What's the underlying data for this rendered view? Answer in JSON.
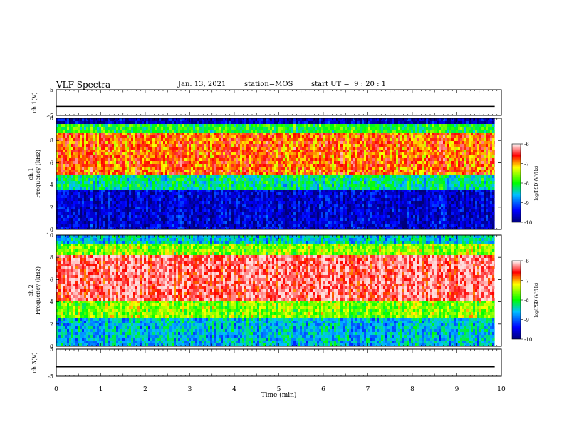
{
  "header": {
    "title": "VLF Spectra",
    "date": "Jan. 13, 2021",
    "station": "station=MOS",
    "start": "start UT =  9 : 20 : 1"
  },
  "chart_data": [
    {
      "type": "line",
      "ylabel": "ch.1(V)",
      "ylim": [
        -5,
        5
      ],
      "yticks": [
        "5",
        "-5"
      ],
      "series": [
        {
          "values": [
            -1.5,
            -1.5
          ]
        }
      ],
      "x": [
        0,
        9.85
      ]
    },
    {
      "type": "heatmap",
      "ylabel": "ch.1\nFrequency (kHz)",
      "ylim": [
        0,
        10
      ],
      "yticks": [
        "0",
        "2",
        "4",
        "6",
        "8",
        "10"
      ],
      "colorbar": {
        "label": "log(PSD)(V²/Hz)",
        "range": [
          -10,
          -6
        ],
        "ticks": [
          "-6",
          "-7",
          "-8",
          "-9",
          "-10"
        ]
      },
      "bands": [
        {
          "from_khz": 0,
          "to_khz": 3.5,
          "level": -9.6
        },
        {
          "from_khz": 3.5,
          "to_khz": 5,
          "level": -8.3
        },
        {
          "from_khz": 5,
          "to_khz": 8.8,
          "level": -6.8
        },
        {
          "from_khz": 8.8,
          "to_khz": 9.5,
          "level": -8.0
        },
        {
          "from_khz": 9.5,
          "to_khz": 10,
          "level": -9.7
        }
      ]
    },
    {
      "type": "heatmap",
      "ylabel": "ch.2\nFrequency (kHz)",
      "ylim": [
        0,
        10
      ],
      "yticks": [
        "0",
        "2",
        "4",
        "6",
        "8",
        "10"
      ],
      "colorbar": {
        "label": "log(PSD)(V²/Hz)",
        "range": [
          -10,
          -6
        ],
        "ticks": [
          "-6",
          "-7",
          "-8",
          "-9",
          "-10"
        ]
      },
      "bands": [
        {
          "from_khz": 0,
          "to_khz": 2.5,
          "level": -8.6
        },
        {
          "from_khz": 2.5,
          "to_khz": 4,
          "level": -7.6
        },
        {
          "from_khz": 4,
          "to_khz": 8.2,
          "level": -6.3
        },
        {
          "from_khz": 8.2,
          "to_khz": 9.3,
          "level": -7.6
        },
        {
          "from_khz": 9.3,
          "to_khz": 10,
          "level": -8.5
        }
      ]
    },
    {
      "type": "line",
      "ylabel": "ch.3(V)",
      "ylim": [
        -5,
        5
      ],
      "yticks": [
        "5",
        "-5"
      ],
      "series": [
        {
          "values": [
            -1.5,
            -1.5
          ]
        }
      ],
      "x": [
        0,
        9.85
      ]
    }
  ],
  "xaxis": {
    "label": "Time  (min)",
    "ticks": [
      "0",
      "1",
      "2",
      "3",
      "4",
      "5",
      "6",
      "7",
      "8",
      "9",
      "10"
    ],
    "range": [
      0,
      10
    ],
    "data_end": 9.85
  },
  "colors": {
    "low": "#000080",
    "mid": "#00ff00",
    "high": "#ff0000"
  }
}
